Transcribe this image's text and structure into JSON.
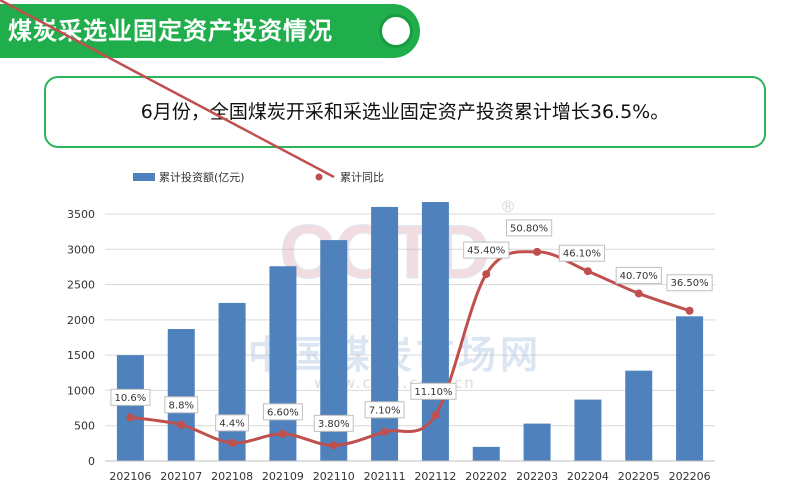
{
  "header": {
    "title": "煤炭采选业固定资产投资情况",
    "summary": "6月份，全国煤炭开采和采选业固定资产投资累计增长36.5%。"
  },
  "watermark": {
    "logo": "CCTD",
    "registered": "®",
    "name": "中国煤炭市场网",
    "url": "www.cctd.com.cn"
  },
  "colors": {
    "accent_green": "#1fae4b",
    "bar_blue": "#4f81bd",
    "line_red": "#c0504d"
  },
  "chart_data": {
    "type": "bar",
    "categories": [
      "202106",
      "202107",
      "202108",
      "202109",
      "202110",
      "202111",
      "202112",
      "202202",
      "202203",
      "202204",
      "202205",
      "202206"
    ],
    "series": [
      {
        "name": "累计投资额(亿元)",
        "type": "bar",
        "values": [
          1500,
          1870,
          2240,
          2760,
          3130,
          3600,
          3670,
          200,
          530,
          870,
          1280,
          2050
        ]
      },
      {
        "name": "累计同比",
        "type": "line",
        "unit": "%",
        "values": [
          10.6,
          8.8,
          4.4,
          6.6,
          3.8,
          7.1,
          11.1,
          45.4,
          50.8,
          46.1,
          40.7,
          36.5
        ],
        "labels": [
          "10.6%",
          "8.8%",
          "4.4%",
          "6.60%",
          "3.80%",
          "7.10%",
          "11.10%",
          "45.40%",
          "50.80%",
          "46.10%",
          "40.70%",
          "36.50%"
        ]
      }
    ],
    "y_ticks": [
      "0",
      "500",
      "1000",
      "1500",
      "2000",
      "2500",
      "3000",
      "3500"
    ],
    "ylim": [
      0,
      3500
    ],
    "y2lim": [
      0,
      60
    ],
    "grid": true,
    "legend_position": "top-left"
  }
}
